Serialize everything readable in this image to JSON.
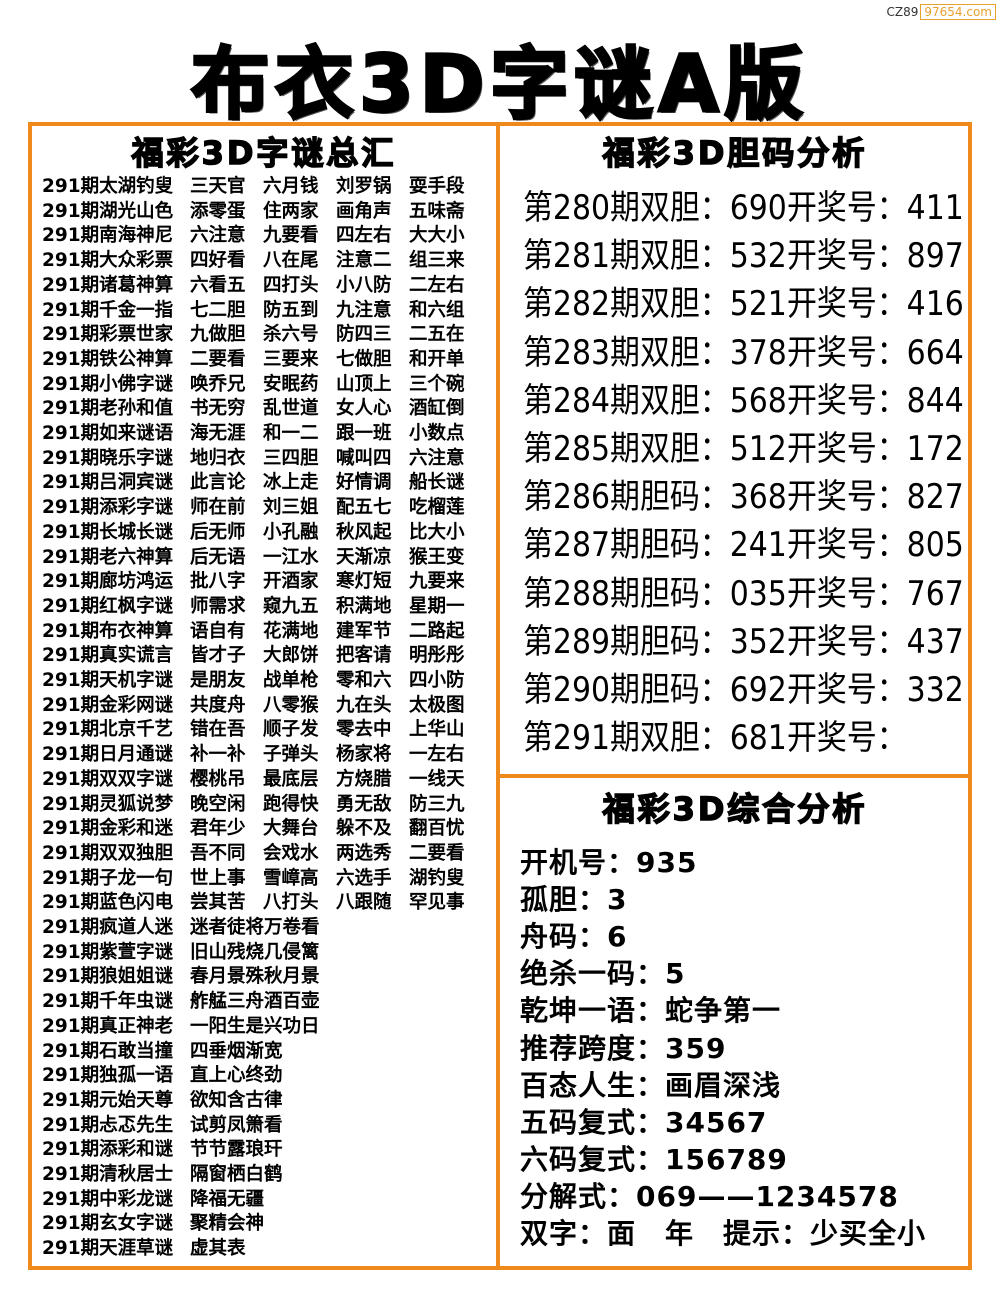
{
  "watermark": {
    "prefix": "CZ89",
    "site": "97654.com"
  },
  "title": "布衣3D字谜A版",
  "left": {
    "heading": "福彩3D字谜总汇",
    "rows": [
      [
        "291期太湖钓叟",
        "三天官",
        "六月钱",
        "刘罗锅",
        "耍手段"
      ],
      [
        "291期湖光山色",
        "添零蛋",
        "住两家",
        "画角声",
        "五味斋"
      ],
      [
        "291期南海神尼",
        "六注意",
        "九要看",
        "四左右",
        "大大小"
      ],
      [
        "291期大众彩票",
        "四好看",
        "八在尾",
        "注意二",
        "组三来"
      ],
      [
        "291期诸葛神算",
        "六看五",
        "四打头",
        "小八防",
        "二左右"
      ],
      [
        "291期千金一指",
        "七二胆",
        "防五到",
        "九注意",
        "和六组"
      ],
      [
        "291期彩票世家",
        "九做胆",
        "杀六号",
        "防四三",
        "二五在"
      ],
      [
        "291期铁公神算",
        "二要看",
        "三要来",
        "七做胆",
        "和开单"
      ],
      [
        "291期小佛字谜",
        "唤乔兄",
        "安眠药",
        "山顶上",
        "三个碗"
      ],
      [
        "291期老孙和值",
        "书无穷",
        "乱世道",
        "女人心",
        "酒缸倒"
      ],
      [
        "291期如来谜语",
        "海无涯",
        "和一二",
        "跟一班",
        "小数点"
      ],
      [
        "291期晓乐字谜",
        "地归衣",
        "三四胆",
        "喊叫四",
        "六注意"
      ],
      [
        "291期吕洞宾谜",
        "此言论",
        "冰上走",
        "好情调",
        "船长谜"
      ],
      [
        "291期添彩字谜",
        "师在前",
        "刘三姐",
        "配五七",
        "吃榴莲"
      ],
      [
        "291期长城长谜",
        "后无师",
        "小孔融",
        "秋风起",
        "比大小"
      ],
      [
        "291期老六神算",
        "后无语",
        "一江水",
        "天渐凉",
        "猴王变"
      ],
      [
        "291期廊坊鸿运",
        "批八字",
        "开酒家",
        "寒灯短",
        "九要来"
      ],
      [
        "291期红枫字谜",
        "师需求",
        "窥九五",
        "积满地",
        "星期一"
      ],
      [
        "291期布衣神算",
        "语自有",
        "花满地",
        "建军节",
        "二路起"
      ],
      [
        "291期真实谎言",
        "皆才子",
        "大郎饼",
        "把客请",
        "明彤彤"
      ],
      [
        "291期天机字谜",
        "是朋友",
        "战单枪",
        "零和六",
        "四小防"
      ],
      [
        "291期金彩网谜",
        "共度舟",
        "八零猴",
        "九在头",
        "太极图"
      ],
      [
        "291期北京千艺",
        "错在吾",
        "顺子发",
        "零去中",
        "上华山"
      ],
      [
        "291期日月通谜",
        "补一补",
        "子弹头",
        "杨家将",
        "一左右"
      ],
      [
        "291期双双字谜",
        "樱桃吊",
        "最底层",
        "方烧腊",
        "一线天"
      ],
      [
        "291期灵狐说梦",
        "晚空闲",
        "跑得快",
        "勇无敌",
        "防三九"
      ],
      [
        "291期金彩和迷",
        "君年少",
        "大舞台",
        "躲不及",
        "翻百忧"
      ],
      [
        "291期双双独胆",
        "吾不同",
        "会戏水",
        "两选秀",
        "二要看"
      ],
      [
        "291期子龙一句",
        "世上事",
        "雪嶂高",
        "六选手",
        "湖钓叟"
      ],
      [
        "291期蓝色闪电",
        "尝其苦",
        "八打头",
        "八跟随",
        "罕见事"
      ],
      [
        "291期疯道人迷",
        "迷者徒将万卷看"
      ],
      [
        "291期紫萱字谜",
        "旧山残烧几侵篱"
      ],
      [
        "291期狼姐姐谜",
        "春月景殊秋月景"
      ],
      [
        "291期千年虫谜",
        "舴艋三舟酒百壶"
      ],
      [
        "291期真正神老",
        "一阳生是兴功日"
      ],
      [
        "291期石敢当撞",
        "四垂烟渐宽"
      ],
      [
        "291期独孤一语",
        "直上心终劲"
      ],
      [
        "291期元始天尊",
        "欲知含古律"
      ],
      [
        "291期忐忑先生",
        "试剪凤箫看"
      ],
      [
        "291期添彩和谜",
        "节节露琅玕"
      ],
      [
        "291期清秋居士",
        "隔窗栖白鹤"
      ],
      [
        "291期中彩龙谜",
        "降福无疆"
      ],
      [
        "291期玄女字谜",
        "聚精会神"
      ],
      [
        "291期天涯草谜",
        "虚其表"
      ]
    ]
  },
  "right_top": {
    "heading": "福彩3D胆码分析",
    "rows": [
      [
        "第280期双胆：690",
        "开奖号：411"
      ],
      [
        "第281期双胆：532",
        "开奖号：897"
      ],
      [
        "第282期双胆：521",
        "开奖号：416"
      ],
      [
        "第283期双胆：378",
        "开奖号：664"
      ],
      [
        "第284期双胆：568",
        "开奖号：844"
      ],
      [
        "第285期双胆：512",
        "开奖号：172"
      ],
      [
        "第286期胆码：368",
        "开奖号：827"
      ],
      [
        "第287期胆码：241",
        "开奖号：805"
      ],
      [
        "第288期胆码：035",
        "开奖号：767"
      ],
      [
        "第289期胆码：352",
        "开奖号：437"
      ],
      [
        "第290期胆码：692",
        "开奖号：332"
      ],
      [
        "第291期双胆：681",
        "开奖号："
      ]
    ]
  },
  "right_bottom": {
    "heading": "福彩3D综合分析",
    "rows": [
      "开机号：935",
      "孤胆：3",
      "舟码：6",
      "绝杀一码：5",
      "乾坤一语：蛇争第一",
      "推荐跨度：359",
      "百态人生：画眉深浅",
      "五码复式：34567",
      "六码复式：156789",
      "分解式：069——1234578",
      "双字：面　年　提示：少买全小"
    ]
  },
  "colors": {
    "border": "#f0891c",
    "watermark": "#e8a030"
  }
}
